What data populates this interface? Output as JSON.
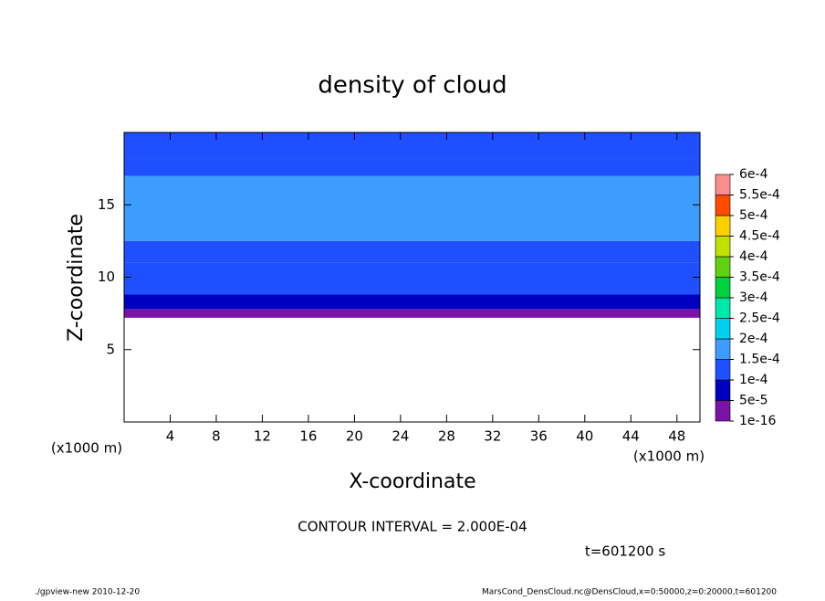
{
  "chart_data": {
    "type": "contour",
    "title": "density of cloud",
    "xlabel": "X-coordinate",
    "ylabel": "Z-coordinate",
    "xunit": "(x1000 m)",
    "yunit": "(x1000 m)",
    "xlim": [
      0,
      50
    ],
    "ylim": [
      0,
      20
    ],
    "xticks": [
      4,
      8,
      12,
      16,
      20,
      24,
      28,
      32,
      36,
      40,
      44,
      48
    ],
    "yticks": [
      5,
      10,
      15
    ],
    "field": {
      "z": [
        7.2,
        7.8,
        8.8,
        11,
        12.5,
        17,
        18.2,
        20
      ],
      "values": [
        2e-05,
        7e-05,
        0.00012,
        0.00014,
        0.00017,
        0.00014,
        0.00012
      ]
    },
    "levels": [
      {
        "value": 1e-16,
        "label": "1e-16"
      },
      {
        "value": 5e-05,
        "label": "5e-5"
      },
      {
        "value": 0.0001,
        "label": "1e-4"
      },
      {
        "value": 0.00015,
        "label": "1.5e-4"
      },
      {
        "value": 0.0002,
        "label": "2e-4"
      },
      {
        "value": 0.00025,
        "label": "2.5e-4"
      },
      {
        "value": 0.0003,
        "label": "3e-4"
      },
      {
        "value": 0.00035,
        "label": "3.5e-4"
      },
      {
        "value": 0.0004,
        "label": "4e-4"
      },
      {
        "value": 0.00045,
        "label": "4.5e-4"
      },
      {
        "value": 0.0005,
        "label": "5e-4"
      },
      {
        "value": 0.00055,
        "label": "5.5e-4"
      },
      {
        "value": 0.0006,
        "label": "6e-4"
      }
    ],
    "colors": [
      "#7a12a8",
      "#0000c0",
      "#1e50ff",
      "#3c9cff",
      "#00d0f0",
      "#00e8a8",
      "#00d040",
      "#60d010",
      "#c0e000",
      "#ffd000",
      "#ff4a00",
      "#ff8c8c"
    ],
    "annotations": [
      "CONTOUR INTERVAL = 2.000E-04",
      "t=601200 s"
    ],
    "footer_left": "./gpview-new  2010-12-20",
    "footer_right": "MarsCond_DensCloud.nc@DensCloud,x=0:50000,z=0:20000,t=601200"
  }
}
